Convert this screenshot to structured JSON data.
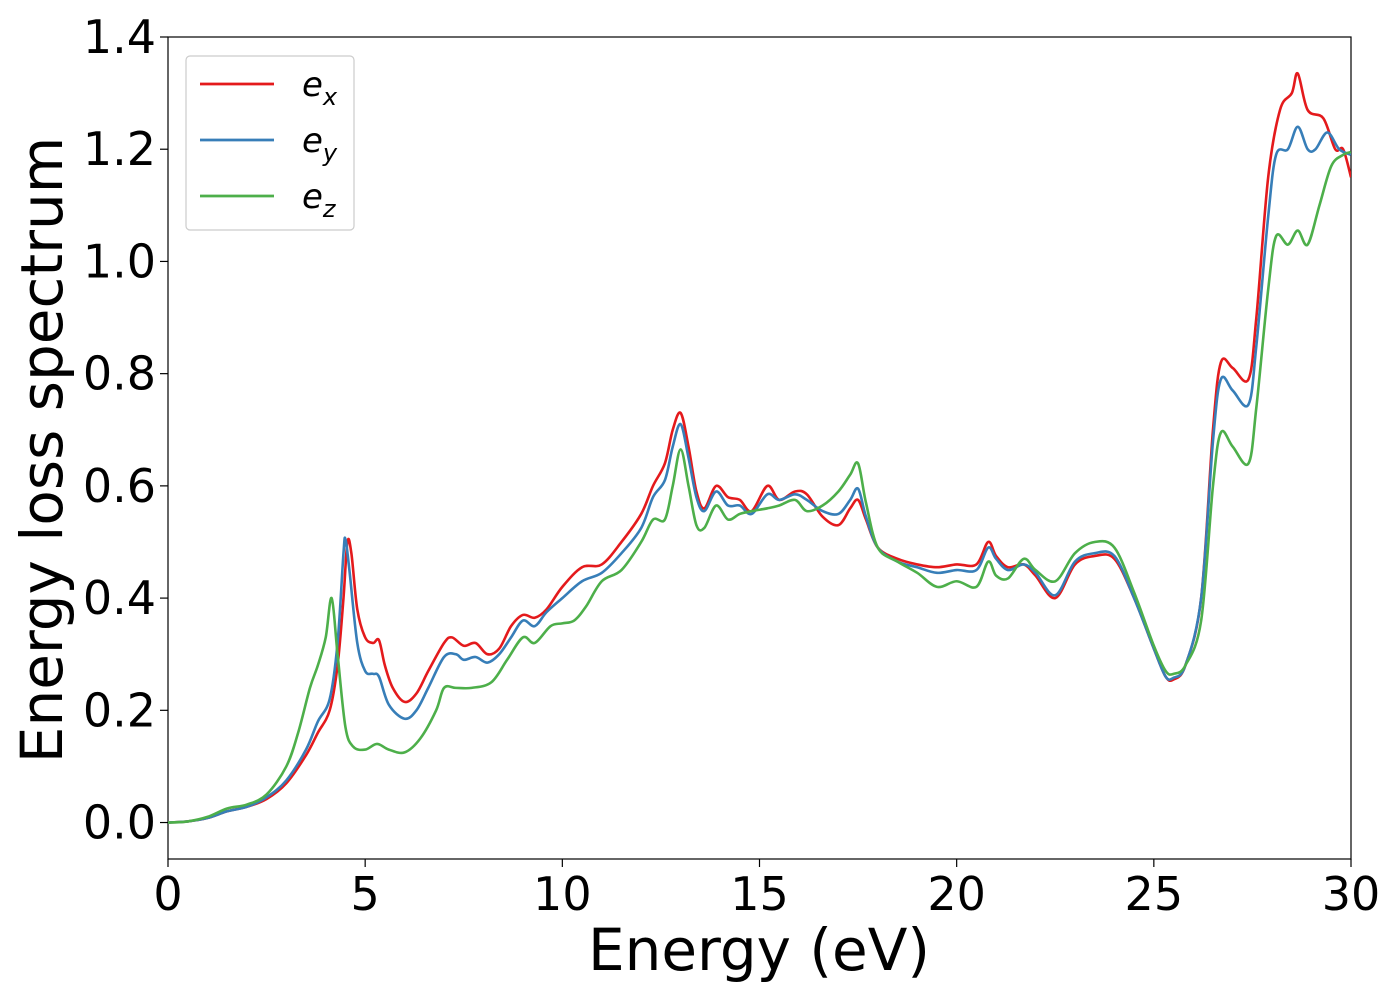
{
  "chart_data": {
    "type": "line",
    "title": "",
    "xlabel": "Energy (eV)",
    "ylabel": "Energy loss spectrum",
    "xlim": [
      0,
      30
    ],
    "ylim": [
      -0.065,
      1.4
    ],
    "xticks": [
      0,
      5,
      10,
      15,
      20,
      25,
      30
    ],
    "xtick_labels": [
      "0",
      "5",
      "10",
      "15",
      "20",
      "25",
      "30"
    ],
    "yticks": [
      0.0,
      0.2,
      0.4,
      0.6,
      0.8,
      1.0,
      1.2,
      1.4
    ],
    "ytick_labels": [
      "0.0",
      "0.2",
      "0.4",
      "0.6",
      "0.8",
      "1.0",
      "1.2",
      "1.4"
    ],
    "grid": false,
    "legend_position": "top-left",
    "series": [
      {
        "name": "e_x",
        "name_base": "e",
        "name_sub": "x",
        "color": "#e41a1c",
        "points": [
          [
            0,
            0
          ],
          [
            0.5,
            0.002
          ],
          [
            1,
            0.008
          ],
          [
            1.5,
            0.02
          ],
          [
            2,
            0.028
          ],
          [
            2.5,
            0.042
          ],
          [
            3,
            0.07
          ],
          [
            3.5,
            0.12
          ],
          [
            3.8,
            0.16
          ],
          [
            4.1,
            0.2
          ],
          [
            4.3,
            0.28
          ],
          [
            4.45,
            0.4
          ],
          [
            4.55,
            0.5
          ],
          [
            4.65,
            0.48
          ],
          [
            4.8,
            0.38
          ],
          [
            5,
            0.33
          ],
          [
            5.2,
            0.32
          ],
          [
            5.35,
            0.325
          ],
          [
            5.5,
            0.28
          ],
          [
            5.7,
            0.24
          ],
          [
            6,
            0.215
          ],
          [
            6.3,
            0.23
          ],
          [
            6.6,
            0.27
          ],
          [
            7,
            0.32
          ],
          [
            7.2,
            0.33
          ],
          [
            7.5,
            0.315
          ],
          [
            7.8,
            0.32
          ],
          [
            8.1,
            0.3
          ],
          [
            8.4,
            0.31
          ],
          [
            8.7,
            0.35
          ],
          [
            9,
            0.37
          ],
          [
            9.3,
            0.365
          ],
          [
            9.6,
            0.38
          ],
          [
            10,
            0.42
          ],
          [
            10.5,
            0.455
          ],
          [
            11,
            0.46
          ],
          [
            11.5,
            0.5
          ],
          [
            12,
            0.55
          ],
          [
            12.3,
            0.6
          ],
          [
            12.6,
            0.64
          ],
          [
            12.8,
            0.7
          ],
          [
            13,
            0.73
          ],
          [
            13.2,
            0.67
          ],
          [
            13.4,
            0.59
          ],
          [
            13.6,
            0.56
          ],
          [
            13.9,
            0.6
          ],
          [
            14.2,
            0.58
          ],
          [
            14.5,
            0.575
          ],
          [
            14.8,
            0.555
          ],
          [
            15.2,
            0.6
          ],
          [
            15.5,
            0.575
          ],
          [
            15.9,
            0.59
          ],
          [
            16.2,
            0.585
          ],
          [
            16.6,
            0.545
          ],
          [
            17,
            0.53
          ],
          [
            17.3,
            0.56
          ],
          [
            17.5,
            0.575
          ],
          [
            17.7,
            0.54
          ],
          [
            18,
            0.49
          ],
          [
            18.5,
            0.47
          ],
          [
            19,
            0.46
          ],
          [
            19.5,
            0.455
          ],
          [
            20,
            0.46
          ],
          [
            20.5,
            0.46
          ],
          [
            20.8,
            0.5
          ],
          [
            21,
            0.475
          ],
          [
            21.3,
            0.455
          ],
          [
            21.7,
            0.46
          ],
          [
            22,
            0.44
          ],
          [
            22.5,
            0.4
          ],
          [
            23,
            0.46
          ],
          [
            23.5,
            0.475
          ],
          [
            24,
            0.47
          ],
          [
            24.5,
            0.4
          ],
          [
            25,
            0.31
          ],
          [
            25.3,
            0.26
          ],
          [
            25.5,
            0.255
          ],
          [
            25.8,
            0.28
          ],
          [
            26.2,
            0.4
          ],
          [
            26.5,
            0.7
          ],
          [
            26.7,
            0.82
          ],
          [
            27,
            0.81
          ],
          [
            27.4,
            0.79
          ],
          [
            27.6,
            0.9
          ],
          [
            27.9,
            1.15
          ],
          [
            28.2,
            1.27
          ],
          [
            28.5,
            1.3
          ],
          [
            28.65,
            1.335
          ],
          [
            28.9,
            1.27
          ],
          [
            29.3,
            1.255
          ],
          [
            29.6,
            1.2
          ],
          [
            29.8,
            1.2
          ],
          [
            30,
            1.15
          ]
        ]
      },
      {
        "name": "e_y",
        "name_base": "e",
        "name_sub": "y",
        "color": "#377eb8",
        "points": [
          [
            0,
            0
          ],
          [
            0.5,
            0.002
          ],
          [
            1,
            0.008
          ],
          [
            1.5,
            0.02
          ],
          [
            2,
            0.028
          ],
          [
            2.5,
            0.045
          ],
          [
            3,
            0.075
          ],
          [
            3.5,
            0.13
          ],
          [
            3.8,
            0.18
          ],
          [
            4.1,
            0.22
          ],
          [
            4.3,
            0.32
          ],
          [
            4.45,
            0.48
          ],
          [
            4.5,
            0.505
          ],
          [
            4.6,
            0.45
          ],
          [
            4.8,
            0.32
          ],
          [
            5,
            0.27
          ],
          [
            5.2,
            0.265
          ],
          [
            5.35,
            0.26
          ],
          [
            5.6,
            0.21
          ],
          [
            6,
            0.185
          ],
          [
            6.3,
            0.2
          ],
          [
            6.6,
            0.24
          ],
          [
            7,
            0.295
          ],
          [
            7.3,
            0.3
          ],
          [
            7.5,
            0.29
          ],
          [
            7.8,
            0.295
          ],
          [
            8.1,
            0.285
          ],
          [
            8.4,
            0.3
          ],
          [
            8.7,
            0.33
          ],
          [
            9,
            0.36
          ],
          [
            9.3,
            0.35
          ],
          [
            9.6,
            0.375
          ],
          [
            10,
            0.4
          ],
          [
            10.5,
            0.43
          ],
          [
            11,
            0.445
          ],
          [
            11.5,
            0.48
          ],
          [
            12,
            0.525
          ],
          [
            12.3,
            0.58
          ],
          [
            12.6,
            0.61
          ],
          [
            12.8,
            0.67
          ],
          [
            13,
            0.71
          ],
          [
            13.2,
            0.65
          ],
          [
            13.4,
            0.58
          ],
          [
            13.6,
            0.555
          ],
          [
            13.9,
            0.59
          ],
          [
            14.2,
            0.565
          ],
          [
            14.5,
            0.565
          ],
          [
            14.8,
            0.55
          ],
          [
            15.2,
            0.585
          ],
          [
            15.5,
            0.575
          ],
          [
            15.9,
            0.585
          ],
          [
            16.2,
            0.575
          ],
          [
            16.6,
            0.555
          ],
          [
            17,
            0.55
          ],
          [
            17.3,
            0.575
          ],
          [
            17.5,
            0.595
          ],
          [
            17.7,
            0.545
          ],
          [
            18,
            0.49
          ],
          [
            18.5,
            0.465
          ],
          [
            19,
            0.455
          ],
          [
            19.5,
            0.445
          ],
          [
            20,
            0.45
          ],
          [
            20.5,
            0.45
          ],
          [
            20.8,
            0.49
          ],
          [
            21,
            0.47
          ],
          [
            21.3,
            0.45
          ],
          [
            21.7,
            0.46
          ],
          [
            22,
            0.445
          ],
          [
            22.5,
            0.405
          ],
          [
            23,
            0.465
          ],
          [
            23.5,
            0.48
          ],
          [
            24,
            0.475
          ],
          [
            24.5,
            0.4
          ],
          [
            25,
            0.31
          ],
          [
            25.3,
            0.26
          ],
          [
            25.5,
            0.258
          ],
          [
            25.8,
            0.28
          ],
          [
            26.2,
            0.4
          ],
          [
            26.5,
            0.68
          ],
          [
            26.7,
            0.79
          ],
          [
            27,
            0.77
          ],
          [
            27.4,
            0.745
          ],
          [
            27.6,
            0.85
          ],
          [
            27.9,
            1.08
          ],
          [
            28.1,
            1.19
          ],
          [
            28.4,
            1.2
          ],
          [
            28.65,
            1.24
          ],
          [
            28.9,
            1.2
          ],
          [
            29.1,
            1.2
          ],
          [
            29.4,
            1.23
          ],
          [
            29.7,
            1.2
          ],
          [
            30,
            1.19
          ]
        ]
      },
      {
        "name": "e_z",
        "name_base": "e",
        "name_sub": "z",
        "color": "#4daf4a",
        "points": [
          [
            0,
            0
          ],
          [
            0.5,
            0.002
          ],
          [
            1,
            0.01
          ],
          [
            1.5,
            0.025
          ],
          [
            2,
            0.032
          ],
          [
            2.5,
            0.05
          ],
          [
            3,
            0.1
          ],
          [
            3.3,
            0.16
          ],
          [
            3.6,
            0.24
          ],
          [
            3.8,
            0.28
          ],
          [
            4,
            0.33
          ],
          [
            4.15,
            0.4
          ],
          [
            4.3,
            0.3
          ],
          [
            4.5,
            0.17
          ],
          [
            4.7,
            0.135
          ],
          [
            5,
            0.13
          ],
          [
            5.3,
            0.14
          ],
          [
            5.6,
            0.13
          ],
          [
            6,
            0.125
          ],
          [
            6.4,
            0.15
          ],
          [
            6.8,
            0.2
          ],
          [
            7,
            0.24
          ],
          [
            7.3,
            0.24
          ],
          [
            7.7,
            0.24
          ],
          [
            8.2,
            0.25
          ],
          [
            8.6,
            0.29
          ],
          [
            9,
            0.33
          ],
          [
            9.3,
            0.32
          ],
          [
            9.7,
            0.35
          ],
          [
            10,
            0.355
          ],
          [
            10.3,
            0.36
          ],
          [
            10.6,
            0.385
          ],
          [
            11,
            0.43
          ],
          [
            11.5,
            0.45
          ],
          [
            12,
            0.5
          ],
          [
            12.3,
            0.54
          ],
          [
            12.6,
            0.54
          ],
          [
            12.8,
            0.6
          ],
          [
            13,
            0.665
          ],
          [
            13.2,
            0.6
          ],
          [
            13.4,
            0.53
          ],
          [
            13.6,
            0.525
          ],
          [
            13.9,
            0.565
          ],
          [
            14.2,
            0.54
          ],
          [
            14.5,
            0.55
          ],
          [
            14.8,
            0.555
          ],
          [
            15.2,
            0.56
          ],
          [
            15.5,
            0.565
          ],
          [
            15.9,
            0.575
          ],
          [
            16.2,
            0.555
          ],
          [
            16.6,
            0.565
          ],
          [
            17,
            0.59
          ],
          [
            17.3,
            0.62
          ],
          [
            17.5,
            0.64
          ],
          [
            17.7,
            0.57
          ],
          [
            18,
            0.49
          ],
          [
            18.5,
            0.465
          ],
          [
            19,
            0.445
          ],
          [
            19.5,
            0.42
          ],
          [
            20,
            0.43
          ],
          [
            20.5,
            0.42
          ],
          [
            20.8,
            0.465
          ],
          [
            21,
            0.44
          ],
          [
            21.3,
            0.435
          ],
          [
            21.7,
            0.47
          ],
          [
            22,
            0.45
          ],
          [
            22.5,
            0.43
          ],
          [
            23,
            0.48
          ],
          [
            23.5,
            0.5
          ],
          [
            24,
            0.49
          ],
          [
            24.5,
            0.41
          ],
          [
            25,
            0.315
          ],
          [
            25.3,
            0.27
          ],
          [
            25.5,
            0.265
          ],
          [
            25.8,
            0.28
          ],
          [
            26.2,
            0.36
          ],
          [
            26.5,
            0.6
          ],
          [
            26.7,
            0.695
          ],
          [
            27,
            0.67
          ],
          [
            27.4,
            0.64
          ],
          [
            27.6,
            0.74
          ],
          [
            27.9,
            0.95
          ],
          [
            28.1,
            1.045
          ],
          [
            28.4,
            1.03
          ],
          [
            28.65,
            1.055
          ],
          [
            28.9,
            1.03
          ],
          [
            29.2,
            1.1
          ],
          [
            29.5,
            1.17
          ],
          [
            29.8,
            1.19
          ],
          [
            30,
            1.195
          ]
        ]
      }
    ]
  }
}
